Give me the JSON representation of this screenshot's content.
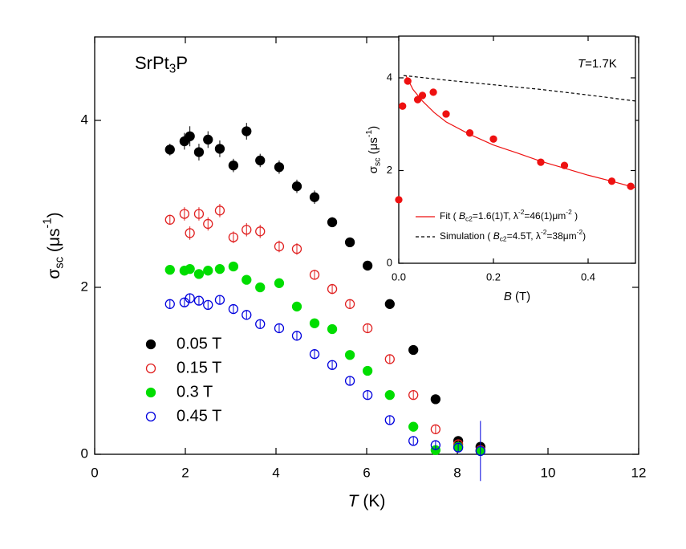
{
  "chart_data": [
    {
      "type": "scatter",
      "annotation": [
        "SrPt",
        {
          "sub": "3"
        },
        "P"
      ],
      "x_label": [
        {
          "i": "T"
        },
        " (K)"
      ],
      "y_label": [
        "σ",
        {
          "sub": "sc"
        },
        " (μs",
        {
          "sup": "-1"
        },
        ")"
      ],
      "xlim": [
        0,
        12
      ],
      "xticks": [
        0,
        2,
        4,
        6,
        8,
        10,
        12
      ],
      "ylim": [
        0,
        5
      ],
      "yticks": [
        0,
        2,
        4
      ],
      "legend": "lower left",
      "series": [
        {
          "name": "0.05 T",
          "color": "#000000",
          "marker": "filled",
          "x": [
            1.66,
            1.98,
            2.1,
            2.3,
            2.5,
            2.76,
            3.06,
            3.35,
            3.65,
            4.07,
            4.46,
            4.85,
            5.24,
            5.63,
            6.02,
            6.51,
            7.03,
            7.52,
            8.02,
            8.51
          ],
          "values": [
            3.65,
            3.75,
            3.81,
            3.62,
            3.77,
            3.66,
            3.46,
            3.87,
            3.52,
            3.44,
            3.21,
            3.08,
            2.78,
            2.54,
            2.26,
            1.8,
            1.25,
            0.66,
            0.16,
            0.09
          ],
          "errors": [
            0.07,
            0.1,
            0.12,
            0.1,
            0.1,
            0.1,
            0.08,
            0.1,
            0.08,
            0.08,
            0.08,
            0.08,
            0.06,
            0.05,
            0.05,
            0.04,
            0.04,
            0.04,
            0.04,
            0.04
          ]
        },
        {
          "name": "0.15 T",
          "color": "#e02020",
          "marker": "open",
          "x": [
            1.66,
            1.98,
            2.1,
            2.3,
            2.5,
            2.76,
            3.06,
            3.35,
            3.65,
            4.07,
            4.46,
            4.85,
            5.24,
            5.63,
            6.02,
            6.51,
            7.03,
            7.52,
            8.02,
            8.51
          ],
          "values": [
            2.81,
            2.88,
            2.65,
            2.88,
            2.76,
            2.92,
            2.6,
            2.69,
            2.67,
            2.49,
            2.46,
            2.15,
            1.98,
            1.8,
            1.51,
            1.14,
            0.71,
            0.3,
            0.12,
            0.05
          ],
          "errors": [
            0.06,
            0.08,
            0.08,
            0.08,
            0.08,
            0.08,
            0.07,
            0.08,
            0.08,
            0.07,
            0.07,
            0.06,
            0.06,
            0.05,
            0.05,
            0.05,
            0.05,
            0.05,
            0.05,
            0.05
          ]
        },
        {
          "name": "0.3 T",
          "color": "#00dd00",
          "marker": "filled",
          "x": [
            1.66,
            1.98,
            2.1,
            2.3,
            2.5,
            2.76,
            3.06,
            3.35,
            3.65,
            4.07,
            4.46,
            4.85,
            5.24,
            5.63,
            6.02,
            6.51,
            7.03,
            7.52,
            8.02,
            8.51
          ],
          "values": [
            2.21,
            2.2,
            2.22,
            2.16,
            2.2,
            2.22,
            2.25,
            2.09,
            2.0,
            2.05,
            1.77,
            1.57,
            1.5,
            1.19,
            1.0,
            0.71,
            0.33,
            0.05,
            0.09,
            0.04
          ],
          "errors": [
            0.03,
            0.03,
            0.03,
            0.03,
            0.03,
            0.03,
            0.03,
            0.03,
            0.03,
            0.03,
            0.03,
            0.03,
            0.03,
            0.03,
            0.03,
            0.03,
            0.03,
            0.03,
            0.03,
            0.03
          ]
        },
        {
          "name": "0.45 T",
          "color": "#0000dd",
          "marker": "open",
          "x": [
            1.66,
            1.98,
            2.1,
            2.3,
            2.5,
            2.76,
            3.06,
            3.35,
            3.65,
            4.07,
            4.46,
            4.85,
            5.24,
            5.63,
            6.02,
            6.51,
            7.03,
            7.52,
            8.02,
            8.51
          ],
          "values": [
            1.8,
            1.82,
            1.87,
            1.84,
            1.79,
            1.85,
            1.74,
            1.67,
            1.56,
            1.51,
            1.42,
            1.2,
            1.07,
            0.88,
            0.71,
            0.41,
            0.16,
            0.11,
            0.08,
            0.04
          ],
          "errors": [
            0.05,
            0.05,
            0.05,
            0.05,
            0.05,
            0.05,
            0.05,
            0.05,
            0.05,
            0.05,
            0.05,
            0.05,
            0.05,
            0.05,
            0.05,
            0.05,
            0.05,
            0.05,
            0.05,
            0.36
          ]
        }
      ]
    },
    {
      "type": "scatter",
      "annotation": [
        {
          "i": "T"
        },
        "=1.7K"
      ],
      "x_label": [
        {
          "i": "B"
        },
        " (T)"
      ],
      "y_label": [
        "σ",
        {
          "sub": "sc"
        },
        " (μs",
        {
          "sup": "-1"
        },
        ")"
      ],
      "xlim": [
        0,
        0.5
      ],
      "xticks": [
        {
          "value": 0,
          "label": "0.0"
        },
        0.2,
        0.4
      ],
      "ylim": [
        0,
        4.9
      ],
      "yticks": [
        0,
        2,
        4
      ],
      "legend": "lower left",
      "series": [
        {
          "kind": "scatter",
          "color": "#ee1111",
          "marker": "filled",
          "x": [
            0,
            0.008,
            0.019,
            0.04,
            0.05,
            0.073,
            0.1,
            0.15,
            0.2,
            0.3,
            0.35,
            0.45,
            0.49
          ],
          "values": [
            1.37,
            3.39,
            3.93,
            3.53,
            3.62,
            3.69,
            3.22,
            2.81,
            2.68,
            2.18,
            2.11,
            1.77,
            1.66
          ]
        },
        {
          "kind": "line",
          "color": "#ee1111",
          "dash": false,
          "name": [
            "Fit  ( ",
            {
              "i": "B"
            },
            {
              "sub": "c2"
            },
            "=1.6(1)T, λ",
            {
              "sup": "-2"
            },
            "=46(1)μm",
            {
              "sup": "-2"
            },
            " )"
          ],
          "x": [
            0.015,
            0.03,
            0.05,
            0.075,
            0.1,
            0.15,
            0.2,
            0.25,
            0.3,
            0.35,
            0.4,
            0.45,
            0.5
          ],
          "values": [
            4.05,
            3.75,
            3.5,
            3.25,
            3.05,
            2.78,
            2.55,
            2.38,
            2.2,
            2.05,
            1.9,
            1.77,
            1.63
          ]
        },
        {
          "kind": "line",
          "color": "#000000",
          "dash": true,
          "name": [
            "Simulation  ( ",
            {
              "i": "B"
            },
            {
              "sub": "c2"
            },
            "=4.5T, λ",
            {
              "sup": "-2"
            },
            "=38μm",
            {
              "sup": "-2"
            },
            ")"
          ],
          "x": [
            0.01,
            0.1,
            0.2,
            0.3,
            0.4,
            0.5
          ],
          "values": [
            4.05,
            3.95,
            3.85,
            3.75,
            3.63,
            3.5
          ]
        }
      ]
    }
  ]
}
